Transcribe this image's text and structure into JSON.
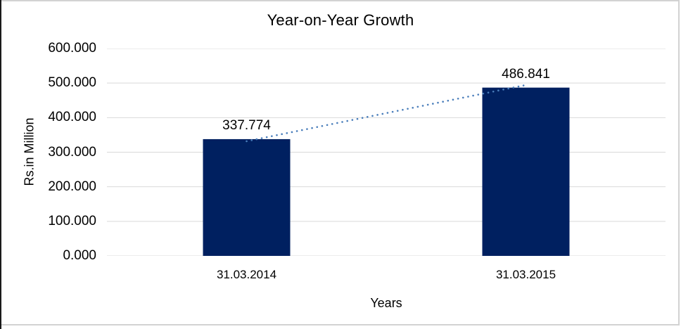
{
  "chart_data": {
    "type": "bar",
    "title": "Year-on-Year Growth",
    "xlabel": "Years",
    "ylabel": "Rs.in Million",
    "categories": [
      "31.03.2014",
      "31.03.2015"
    ],
    "values": [
      337.774,
      486.841
    ],
    "data_labels": [
      "337.774",
      "486.841"
    ],
    "ylim": [
      0,
      600
    ],
    "ytick_step": 100,
    "ytick_labels": [
      "0.000",
      "100.000",
      "200.000",
      "300.000",
      "400.000",
      "500.000",
      "600.000"
    ],
    "grid": "horizontal",
    "legend": "none",
    "trendline": {
      "style": "dotted",
      "color": "#4a7ebb"
    },
    "colors": {
      "bar": "#002060",
      "gridline": "#d9d9d9",
      "trendline": "#4a7ebb",
      "text": "#000000",
      "border": "#d2d2d2",
      "background": "#ffffff"
    }
  }
}
